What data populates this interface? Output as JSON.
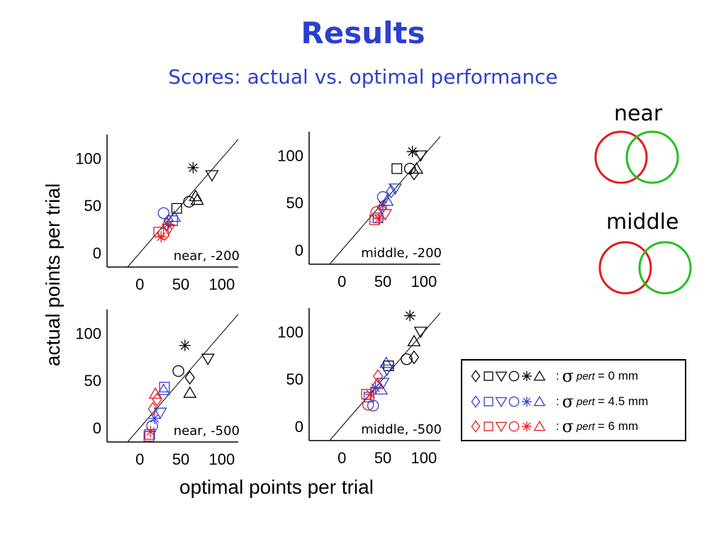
{
  "title": "Results",
  "subtitle": "Scores: actual vs. optimal performance",
  "venn": [
    {
      "label": "near",
      "left_color": "#e41a1c",
      "right_color": "#22c11f"
    },
    {
      "label": "middle",
      "left_color": "#e41a1c",
      "right_color": "#22c11f"
    }
  ],
  "legend": [
    {
      "color": "#000000",
      "sep": ":",
      "sigma": "σ",
      "sub": "pert",
      "value": "= 0 mm"
    },
    {
      "color": "#2b3fcf",
      "sep": ":",
      "sigma": "σ",
      "sub": "pert",
      "value": "= 4.5 mm"
    },
    {
      "color": "#e41a1c",
      "sep": ":",
      "sigma": "σ",
      "sub": "pert",
      "value": "= 6 mm"
    }
  ],
  "chart_data": {
    "type": "scatter",
    "xlabel": "optimal points per trial",
    "ylabel": "actual points per trial",
    "xlim": [
      -40,
      120
    ],
    "ylim": [
      -15,
      125
    ],
    "xticks": [
      "0",
      "50",
      "100"
    ],
    "yticks": [
      "0",
      "50",
      "100"
    ],
    "series_colors": {
      "black": "#000000",
      "blue": "#2b3fcf",
      "red": "#e41a1c"
    },
    "panels": [
      {
        "label": "near, -200",
        "points": [
          {
            "marker": "star",
            "color": "black",
            "x": 65,
            "y": 90
          },
          {
            "marker": "tri_down",
            "color": "black",
            "x": 88,
            "y": 82
          },
          {
            "marker": "tri_up",
            "color": "black",
            "x": 68,
            "y": 60
          },
          {
            "marker": "tri_up",
            "color": "black",
            "x": 70,
            "y": 56
          },
          {
            "marker": "circle",
            "color": "black",
            "x": 60,
            "y": 54
          },
          {
            "marker": "square",
            "color": "black",
            "x": 45,
            "y": 47
          },
          {
            "marker": "circle",
            "color": "blue",
            "x": 29,
            "y": 42
          },
          {
            "marker": "tri_up",
            "color": "blue",
            "x": 42,
            "y": 38
          },
          {
            "marker": "square",
            "color": "blue",
            "x": 40,
            "y": 34
          },
          {
            "marker": "diamond",
            "color": "blue",
            "x": 35,
            "y": 34
          },
          {
            "marker": "star",
            "color": "blue",
            "x": 34,
            "y": 30
          },
          {
            "marker": "diamond",
            "color": "red",
            "x": 33,
            "y": 30
          },
          {
            "marker": "tri_down",
            "color": "red",
            "x": 35,
            "y": 25
          },
          {
            "marker": "square",
            "color": "red",
            "x": 23,
            "y": 22
          },
          {
            "marker": "circle",
            "color": "red",
            "x": 29,
            "y": 20
          },
          {
            "marker": "star",
            "color": "red",
            "x": 26,
            "y": 17
          }
        ]
      },
      {
        "label": "middle, -200",
        "points": [
          {
            "marker": "star",
            "color": "black",
            "x": 86,
            "y": 104
          },
          {
            "marker": "tri_down",
            "color": "black",
            "x": 96,
            "y": 100
          },
          {
            "marker": "square",
            "color": "black",
            "x": 67,
            "y": 86
          },
          {
            "marker": "circle",
            "color": "black",
            "x": 83,
            "y": 86
          },
          {
            "marker": "tri_up",
            "color": "black",
            "x": 91,
            "y": 86
          },
          {
            "marker": "diamond",
            "color": "black",
            "x": 88,
            "y": 81
          },
          {
            "marker": "tri_down",
            "color": "blue",
            "x": 65,
            "y": 65
          },
          {
            "marker": "diamond",
            "color": "blue",
            "x": 60,
            "y": 62
          },
          {
            "marker": "circle",
            "color": "blue",
            "x": 50,
            "y": 56
          },
          {
            "marker": "tri_up",
            "color": "blue",
            "x": 55,
            "y": 52
          },
          {
            "marker": "star",
            "color": "blue",
            "x": 50,
            "y": 47
          },
          {
            "marker": "diamond",
            "color": "red",
            "x": 49,
            "y": 45
          },
          {
            "marker": "circle",
            "color": "red",
            "x": 42,
            "y": 40
          },
          {
            "marker": "tri_down",
            "color": "red",
            "x": 53,
            "y": 38
          },
          {
            "marker": "square",
            "color": "blue",
            "x": 44,
            "y": 34
          },
          {
            "marker": "square",
            "color": "red",
            "x": 40,
            "y": 32
          },
          {
            "marker": "star",
            "color": "red",
            "x": 45,
            "y": 33
          }
        ]
      },
      {
        "label": "near, -500",
        "points": [
          {
            "marker": "star",
            "color": "black",
            "x": 55,
            "y": 87
          },
          {
            "marker": "tri_down",
            "color": "black",
            "x": 83,
            "y": 73
          },
          {
            "marker": "circle",
            "color": "black",
            "x": 47,
            "y": 60
          },
          {
            "marker": "diamond",
            "color": "black",
            "x": 61,
            "y": 53
          },
          {
            "marker": "tri_up",
            "color": "black",
            "x": 61,
            "y": 37
          },
          {
            "marker": "square",
            "color": "blue",
            "x": 30,
            "y": 43
          },
          {
            "marker": "tri_up",
            "color": "blue",
            "x": 29,
            "y": 40
          },
          {
            "marker": "tri_up",
            "color": "red",
            "x": 19,
            "y": 36
          },
          {
            "marker": "diamond",
            "color": "red",
            "x": 21,
            "y": 30
          },
          {
            "marker": "diamond",
            "color": "red",
            "x": 16,
            "y": 20
          },
          {
            "marker": "tri_down",
            "color": "blue",
            "x": 25,
            "y": 16
          },
          {
            "marker": "star",
            "color": "blue",
            "x": 18,
            "y": 10
          },
          {
            "marker": "circle",
            "color": "blue",
            "x": 15,
            "y": 2
          },
          {
            "marker": "star",
            "color": "red",
            "x": 13,
            "y": -4
          },
          {
            "marker": "square",
            "color": "blue",
            "x": 12,
            "y": -7
          },
          {
            "marker": "square",
            "color": "red",
            "x": 11,
            "y": -9
          }
        ]
      },
      {
        "label": "middle, -500",
        "points": [
          {
            "marker": "star",
            "color": "black",
            "x": 83,
            "y": 117
          },
          {
            "marker": "tri_down",
            "color": "black",
            "x": 96,
            "y": 100
          },
          {
            "marker": "tri_up",
            "color": "black",
            "x": 88,
            "y": 90
          },
          {
            "marker": "diamond",
            "color": "black",
            "x": 88,
            "y": 73
          },
          {
            "marker": "circle",
            "color": "black",
            "x": 79,
            "y": 71
          },
          {
            "marker": "tri_up",
            "color": "blue",
            "x": 54,
            "y": 67
          },
          {
            "marker": "square",
            "color": "black",
            "x": 57,
            "y": 64
          },
          {
            "marker": "tri_down",
            "color": "blue",
            "x": 55,
            "y": 60
          },
          {
            "marker": "diamond",
            "color": "red",
            "x": 44,
            "y": 53
          },
          {
            "marker": "tri_down",
            "color": "blue",
            "x": 50,
            "y": 46
          },
          {
            "marker": "tri_up",
            "color": "red",
            "x": 43,
            "y": 45
          },
          {
            "marker": "star",
            "color": "blue",
            "x": 41,
            "y": 41
          },
          {
            "marker": "tri_up",
            "color": "blue",
            "x": 48,
            "y": 39
          },
          {
            "marker": "square",
            "color": "red",
            "x": 30,
            "y": 34
          },
          {
            "marker": "star",
            "color": "red",
            "x": 35,
            "y": 34
          },
          {
            "marker": "square",
            "color": "blue",
            "x": 33,
            "y": 31
          },
          {
            "marker": "circle",
            "color": "red",
            "x": 32,
            "y": 23
          },
          {
            "marker": "circle",
            "color": "blue",
            "x": 38,
            "y": 22
          }
        ]
      }
    ]
  }
}
